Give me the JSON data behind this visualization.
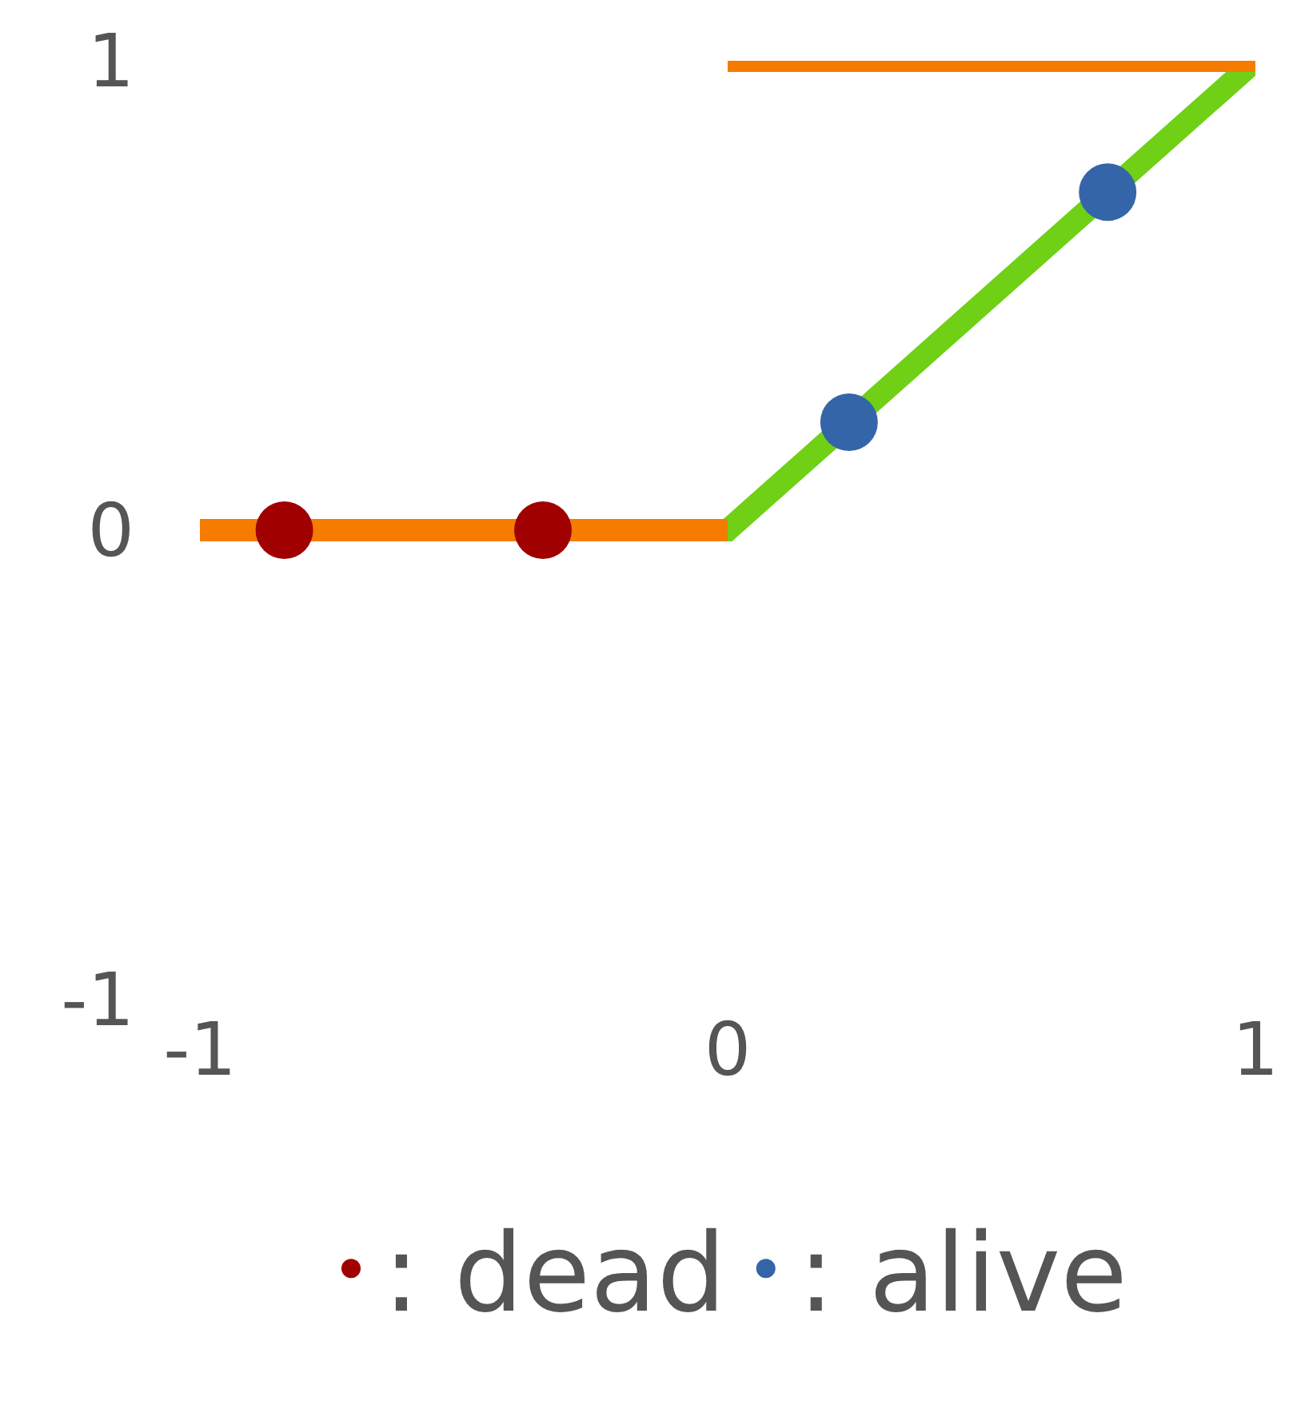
{
  "chart_data": {
    "type": "line",
    "xlim": [
      -1,
      1
    ],
    "ylim": [
      -1,
      1
    ],
    "xticks": [
      -1,
      0,
      1
    ],
    "yticks": [
      -1,
      0,
      1
    ],
    "grid": false,
    "legend": "bottom",
    "marker": "none",
    "series": [
      {
        "color": "#6fd016",
        "x": [
          -1,
          0,
          1
        ],
        "values": [
          0,
          0,
          1
        ]
      },
      {
        "color": "#f57c00",
        "x": [
          -1,
          0
        ],
        "values": [
          0,
          0
        ]
      },
      {
        "color": "#f57c00",
        "x": [
          0,
          1
        ],
        "values": [
          1,
          1
        ]
      },
      {
        "type": "scatter",
        "name": ": dead",
        "color": "#a00000",
        "marker": "circle",
        "x": [
          -0.84,
          -0.35
        ],
        "values": [
          0,
          0
        ]
      },
      {
        "type": "scatter",
        "name": ": alive",
        "color": "#3465a8",
        "marker": "circle",
        "x": [
          0.23,
          0.72
        ],
        "values": [
          0.23,
          0.72
        ]
      }
    ]
  }
}
